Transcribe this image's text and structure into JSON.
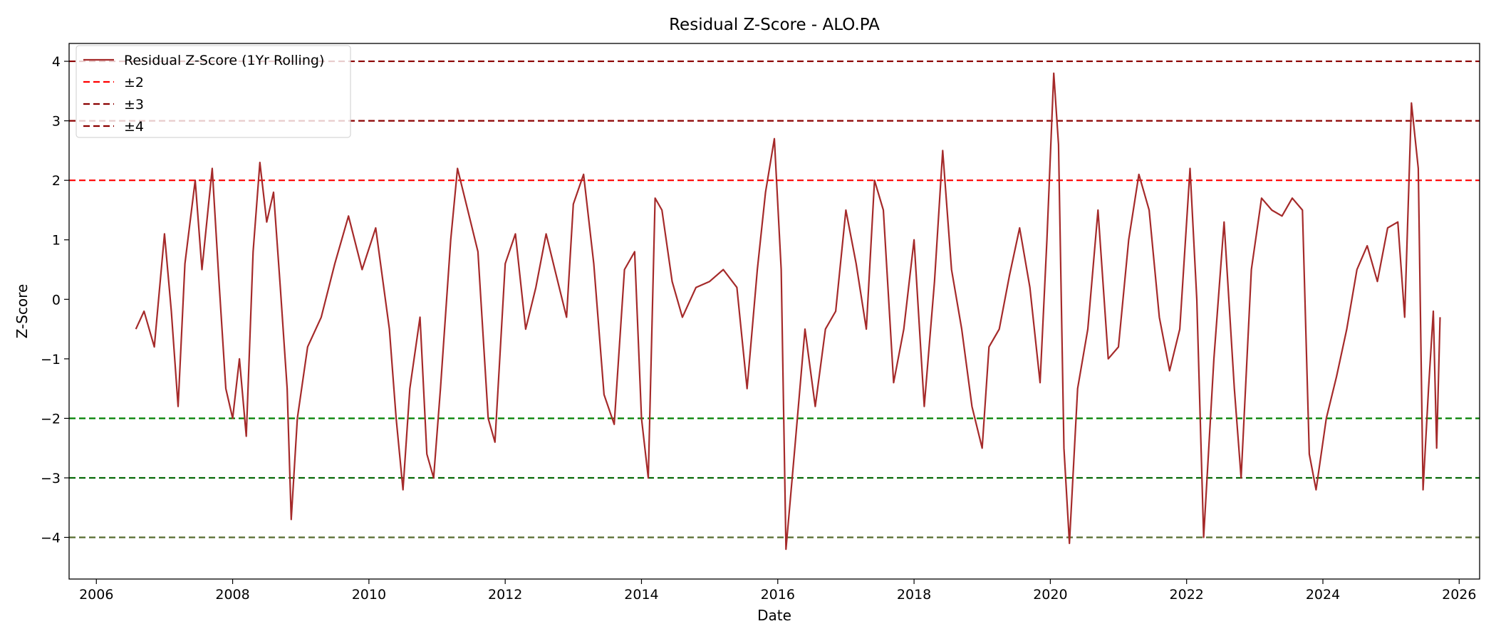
{
  "chart_data": {
    "type": "line",
    "title": "Residual Z-Score - ALO.PA",
    "xlabel": "Date",
    "ylabel": "Z-Score",
    "xlim": [
      2005.6,
      2026.3
    ],
    "ylim": [
      -4.7,
      4.3
    ],
    "grid": false,
    "legend_position": "top-left",
    "x_ticks": [
      "2006",
      "2008",
      "2010",
      "2012",
      "2014",
      "2016",
      "2018",
      "2020",
      "2022",
      "2024",
      "2026"
    ],
    "y_ticks": [
      "4",
      "3",
      "2",
      "1",
      "0",
      "−1",
      "−2",
      "−3",
      "−4"
    ],
    "legend": [
      {
        "label": "Residual Z-Score (1Yr Rolling)",
        "color": "#a52a2a",
        "style": "solid"
      },
      {
        "label": "±2",
        "color": "#ff0000",
        "style": "dashed"
      },
      {
        "label": "±3",
        "color": "#8b0000",
        "style": "dashed"
      },
      {
        "label": "±4",
        "color": "#8b0000",
        "style": "dashed"
      }
    ],
    "reference_lines": [
      {
        "y": 4,
        "color": "#8b0000"
      },
      {
        "y": 3,
        "color": "#8b0000"
      },
      {
        "y": 2,
        "color": "#ff0000"
      },
      {
        "y": -2,
        "color": "#008000"
      },
      {
        "y": -3,
        "color": "#006400"
      },
      {
        "y": -4,
        "color": "#556b2f"
      }
    ],
    "series": [
      {
        "name": "Residual Z-Score (1Yr Rolling)",
        "color": "#a52a2a",
        "x": [
          2006.58,
          2006.7,
          2006.85,
          2007.0,
          2007.1,
          2007.2,
          2007.3,
          2007.45,
          2007.55,
          2007.7,
          2007.8,
          2007.9,
          2008.0,
          2008.1,
          2008.2,
          2008.3,
          2008.4,
          2008.5,
          2008.6,
          2008.7,
          2008.8,
          2008.86,
          2008.95,
          2009.1,
          2009.3,
          2009.5,
          2009.7,
          2009.9,
          2010.1,
          2010.3,
          2010.4,
          2010.5,
          2010.6,
          2010.75,
          2010.85,
          2010.95,
          2011.05,
          2011.2,
          2011.3,
          2011.45,
          2011.6,
          2011.75,
          2011.85,
          2012.0,
          2012.15,
          2012.3,
          2012.45,
          2012.6,
          2012.75,
          2012.9,
          2013.0,
          2013.15,
          2013.3,
          2013.45,
          2013.6,
          2013.75,
          2013.9,
          2014.0,
          2014.1,
          2014.2,
          2014.3,
          2014.45,
          2014.6,
          2014.8,
          2015.0,
          2015.2,
          2015.4,
          2015.55,
          2015.7,
          2015.82,
          2015.95,
          2016.05,
          2016.12,
          2016.25,
          2016.4,
          2016.55,
          2016.7,
          2016.85,
          2017.0,
          2017.15,
          2017.3,
          2017.42,
          2017.55,
          2017.7,
          2017.85,
          2018.0,
          2018.15,
          2018.3,
          2018.42,
          2018.55,
          2018.7,
          2018.85,
          2019.0,
          2019.1,
          2019.25,
          2019.4,
          2019.55,
          2019.7,
          2019.85,
          2019.95,
          2020.05,
          2020.12,
          2020.2,
          2020.28,
          2020.4,
          2020.55,
          2020.7,
          2020.85,
          2021.0,
          2021.15,
          2021.3,
          2021.45,
          2021.6,
          2021.75,
          2021.9,
          2022.05,
          2022.15,
          2022.25,
          2022.4,
          2022.55,
          2022.7,
          2022.8,
          2022.95,
          2023.1,
          2023.25,
          2023.4,
          2023.55,
          2023.7,
          2023.8,
          2023.9,
          2024.05,
          2024.2,
          2024.35,
          2024.5,
          2024.65,
          2024.8,
          2024.95,
          2025.1,
          2025.2,
          2025.3,
          2025.4,
          2025.47,
          2025.55,
          2025.62,
          2025.67,
          2025.72
        ],
        "y": [
          -0.5,
          -0.2,
          -0.8,
          1.1,
          -0.2,
          -1.8,
          0.6,
          2.0,
          0.5,
          2.2,
          0.3,
          -1.5,
          -2.0,
          -1.0,
          -2.3,
          0.8,
          2.3,
          1.3,
          1.8,
          0.2,
          -1.5,
          -3.7,
          -2.0,
          -0.8,
          -0.3,
          0.6,
          1.4,
          0.5,
          1.2,
          -0.5,
          -2.0,
          -3.2,
          -1.5,
          -0.3,
          -2.6,
          -3.0,
          -1.5,
          1.0,
          2.2,
          1.5,
          0.8,
          -2.0,
          -2.4,
          0.6,
          1.1,
          -0.5,
          0.2,
          1.1,
          0.4,
          -0.3,
          1.6,
          2.1,
          0.6,
          -1.6,
          -2.1,
          0.5,
          0.8,
          -2.0,
          -3.0,
          1.7,
          1.5,
          0.3,
          -0.3,
          0.2,
          0.3,
          0.5,
          0.2,
          -1.5,
          0.5,
          1.8,
          2.7,
          0.5,
          -4.2,
          -2.5,
          -0.5,
          -1.8,
          -0.5,
          -0.2,
          1.5,
          0.6,
          -0.5,
          2.0,
          1.5,
          -1.4,
          -0.5,
          1.0,
          -1.8,
          0.3,
          2.5,
          0.5,
          -0.5,
          -1.8,
          -2.5,
          -0.8,
          -0.5,
          0.4,
          1.2,
          0.2,
          -1.4,
          1.0,
          3.8,
          2.6,
          -2.5,
          -4.1,
          -1.5,
          -0.5,
          1.5,
          -1.0,
          -0.8,
          1.0,
          2.1,
          1.5,
          -0.3,
          -1.2,
          -0.5,
          2.2,
          0.0,
          -4.0,
          -1.0,
          1.3,
          -1.5,
          -3.0,
          0.5,
          1.7,
          1.5,
          1.4,
          1.7,
          1.5,
          -2.6,
          -3.2,
          -2.0,
          -1.3,
          -0.5,
          0.5,
          0.9,
          0.3,
          1.2,
          1.3,
          -0.3,
          3.3,
          2.2,
          -3.2,
          -1.5,
          -0.2,
          -2.5,
          -0.3
        ]
      }
    ]
  }
}
